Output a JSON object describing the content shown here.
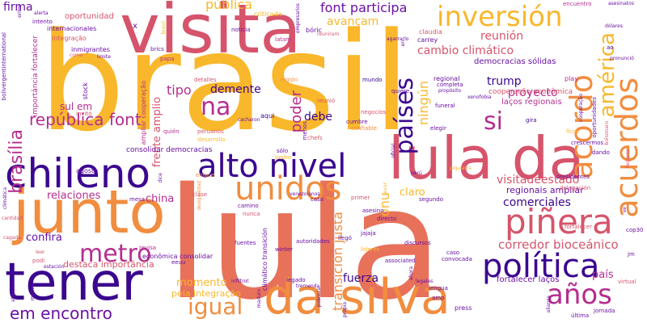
{
  "palette": {
    "gold": "#f9b72b",
    "coral": "#e8715a",
    "rose": "#d6546b",
    "magenta": "#b52d8f",
    "purple": "#6a11a4",
    "indigo": "#3b078f",
    "orange": "#f18d3f",
    "background": "#ffffff"
  },
  "words": [
    {
      "text": "lula",
      "color": "coral"
    },
    {
      "text": "brasil",
      "color": "gold"
    },
    {
      "text": "visita",
      "color": "rose"
    },
    {
      "text": "junto",
      "color": "orange"
    },
    {
      "text": "tener",
      "color": "indigo"
    },
    {
      "text": "chileno",
      "color": "indigo"
    },
    {
      "text": "lula da",
      "color": "rose"
    },
    {
      "text": "da silva",
      "color": "orange"
    },
    {
      "text": "alto nivel",
      "color": "indigo"
    },
    {
      "text": "inversión",
      "color": "gold"
    },
    {
      "text": "unidos",
      "color": "orange"
    },
    {
      "text": "piñera",
      "color": "rose"
    },
    {
      "text": "política",
      "color": "indigo"
    },
    {
      "text": "acordo",
      "color": "orange"
    },
    {
      "text": "acuerdos",
      "color": "orange"
    },
    {
      "text": "américa",
      "color": "gold"
    },
    {
      "text": "países",
      "color": "indigo"
    },
    {
      "text": "metro",
      "color": "magenta"
    },
    {
      "text": "na",
      "color": "magenta"
    },
    {
      "text": "si",
      "color": "magenta"
    },
    {
      "text": "igual",
      "color": "orange"
    },
    {
      "text": "años",
      "color": "magenta"
    },
    {
      "text": "em encontro",
      "color": "purple"
    },
    {
      "text": "república font",
      "color": "magenta"
    },
    {
      "text": "brasília",
      "color": "magenta"
    },
    {
      "text": "font participa",
      "color": "purple"
    },
    {
      "text": "pública",
      "color": "gold"
    },
    {
      "text": "cambio climático",
      "color": "rose"
    },
    {
      "text": "reunión",
      "color": "rose"
    },
    {
      "text": "avançam",
      "color": "gold"
    },
    {
      "text": "corredor bioceánico",
      "color": "rose"
    },
    {
      "text": "visitadeestado",
      "color": "rose"
    },
    {
      "text": "comerciales",
      "color": "indigo"
    },
    {
      "text": "regionais ampliar",
      "color": "purple"
    },
    {
      "text": "proyecto",
      "color": "magenta"
    },
    {
      "text": "trump",
      "color": "indigo"
    },
    {
      "text": "tipo",
      "color": "magenta"
    },
    {
      "text": "demente",
      "color": "indigo"
    },
    {
      "text": "debe",
      "color": "indigo"
    },
    {
      "text": "fuerza",
      "color": "indigo"
    },
    {
      "text": "transición justa",
      "color": "orange"
    },
    {
      "text": "momento",
      "color": "gold"
    },
    {
      "text": "relaciones",
      "color": "magenta"
    },
    {
      "text": "china",
      "color": "magenta"
    },
    {
      "text": "ningún",
      "color": "gold"
    },
    {
      "text": "claro",
      "color": "gold"
    },
    {
      "text": "onu",
      "color": "gold"
    },
    {
      "text": "confira",
      "color": "purple"
    },
    {
      "text": "poder",
      "color": "magenta"
    },
    {
      "text": "firma",
      "color": "purple"
    },
    {
      "text": "país",
      "color": "magenta"
    },
    {
      "text": "sul em",
      "color": "magenta"
    },
    {
      "text": "frente amplio",
      "color": "rose"
    },
    {
      "text": "pela integração",
      "color": "gold"
    },
    {
      "text": "destaca importância",
      "color": "rose"
    },
    {
      "text": "oportunidad",
      "color": "rose"
    },
    {
      "text": "democracias sólidas",
      "color": "purple"
    },
    {
      "text": "laços regionais",
      "color": "magenta"
    },
    {
      "text": "cooperação econômica",
      "color": "rose"
    },
    {
      "text": "fortalecer laços",
      "color": "purple"
    },
    {
      "text": "consolidar democracias",
      "color": "purple"
    },
    {
      "text": "ampliar cooperação",
      "color": "magenta"
    },
    {
      "text": "importância fortalecer",
      "color": "magenta"
    },
    {
      "text": "integração",
      "color": "rose"
    },
    {
      "text": "internacionales",
      "color": "purple"
    },
    {
      "text": "inmigrantes",
      "color": "purple"
    },
    {
      "text": "regional",
      "color": "purple"
    },
    {
      "text": "claudia",
      "color": "rose"
    },
    {
      "text": "carrey",
      "color": "purple"
    },
    {
      "text": "encuentro",
      "color": "magenta"
    },
    {
      "text": "noticia",
      "color": "purple"
    },
    {
      "text": "bóric",
      "color": "purple"
    },
    {
      "text": "latam",
      "color": "magenta"
    },
    {
      "text": "criticada",
      "color": "gold"
    },
    {
      "text": "reuniram",
      "color": "rose"
    },
    {
      "text": "papa",
      "color": "magenta"
    },
    {
      "text": "brics",
      "color": "purple"
    },
    {
      "text": "mundo",
      "color": "indigo"
    },
    {
      "text": "quiere",
      "color": "purple"
    },
    {
      "text": "completa",
      "color": "purple"
    },
    {
      "text": "play",
      "color": "magenta"
    },
    {
      "text": "ao",
      "color": "indigo"
    },
    {
      "text": "detalles",
      "color": "rose"
    },
    {
      "text": "región",
      "color": "orange"
    },
    {
      "text": "negocios",
      "color": "rose"
    },
    {
      "text": "reunió",
      "color": "rose"
    },
    {
      "text": "confiable",
      "color": "orange"
    },
    {
      "text": "cumbre",
      "color": "purple"
    },
    {
      "text": "menos",
      "color": "purple"
    },
    {
      "text": "elegir",
      "color": "purple"
    },
    {
      "text": "gira",
      "color": "indigo"
    },
    {
      "text": "aqui",
      "color": "indigo"
    },
    {
      "text": "chefs",
      "color": "rose"
    },
    {
      "text": "desarrollo",
      "color": "gold"
    },
    {
      "text": "sólo",
      "color": "purple"
    },
    {
      "text": "pedro",
      "color": "gold"
    },
    {
      "text": "stock",
      "color": "purple"
    },
    {
      "text": "invitó",
      "color": "rose"
    },
    {
      "text": "ano",
      "color": "orange"
    },
    {
      "text": "quién",
      "color": "magenta"
    },
    {
      "text": "peruanos",
      "color": "rose"
    },
    {
      "text": "agosto",
      "color": "purple"
    },
    {
      "text": "mesa",
      "color": "purple"
    },
    {
      "text": "clase",
      "color": "rose"
    },
    {
      "text": "camino",
      "color": "purple"
    },
    {
      "text": "nunca",
      "color": "rose"
    },
    {
      "text": "casa",
      "color": "purple"
    },
    {
      "text": "primer",
      "color": "rose"
    },
    {
      "text": "segundo",
      "color": "purple"
    },
    {
      "text": "presidentes",
      "color": "purple"
    },
    {
      "text": "delegación",
      "color": "rose"
    },
    {
      "text": "dando",
      "color": "purple"
    },
    {
      "text": "crescermos",
      "color": "purple"
    },
    {
      "text": "última",
      "color": "purple"
    },
    {
      "text": "revisa",
      "color": "magenta"
    },
    {
      "text": "econômica consolidar",
      "color": "purple"
    },
    {
      "text": "fuentes",
      "color": "purple"
    },
    {
      "text": "autoridades",
      "color": "purple"
    },
    {
      "text": "asesino",
      "color": "purple"
    },
    {
      "text": "directo",
      "color": "purple"
    },
    {
      "text": "discursos",
      "color": "purple"
    },
    {
      "text": "jajaja",
      "color": "purple"
    },
    {
      "text": "llegó",
      "color": "purple"
    },
    {
      "text": "lideres",
      "color": "gold"
    },
    {
      "text": "winter",
      "color": "purple"
    },
    {
      "text": "convocada",
      "color": "purple"
    },
    {
      "text": "caso",
      "color": "purple"
    },
    {
      "text": "legado",
      "color": "purple"
    },
    {
      "text": "lengua",
      "color": "purple"
    },
    {
      "text": "press",
      "color": "purple"
    },
    {
      "text": "jornada",
      "color": "purple"
    },
    {
      "text": "virtual",
      "color": "rose"
    },
    {
      "text": "podi",
      "color": "rose"
    },
    {
      "text": "leer",
      "color": "rose"
    },
    {
      "text": "estación",
      "color": "purple"
    },
    {
      "text": "eeuu",
      "color": "purple"
    },
    {
      "text": "climático transición",
      "color": "purple"
    },
    {
      "text": "alerta",
      "color": "purple"
    },
    {
      "text": "intento",
      "color": "purple"
    },
    {
      "text": "como",
      "color": "rose"
    },
    {
      "text": "pronunció",
      "color": "purple"
    },
    {
      "text": "oportunidades",
      "color": "purple"
    },
    {
      "text": "cooperação",
      "color": "purple"
    },
    {
      "text": "associated",
      "color": "purple"
    },
    {
      "text": "amp",
      "color": "purple"
    },
    {
      "text": "alianza",
      "color": "purple"
    },
    {
      "text": "fortalecer",
      "color": "rose"
    },
    {
      "text": "ficou",
      "color": "gold"
    },
    {
      "text": "cop30",
      "color": "purple"
    },
    {
      "text": "jm",
      "color": "purple"
    },
    {
      "text": "ve",
      "color": "purple"
    },
    {
      "text": "en",
      "color": "purple"
    },
    {
      "text": "asesinatos",
      "color": "purple"
    },
    {
      "text": "dólares",
      "color": "purple"
    },
    {
      "text": "límite",
      "color": "purple"
    },
    {
      "text": "cacharon",
      "color": "purple"
    },
    {
      "text": "redondo",
      "color": "gold"
    },
    {
      "text": "propósito",
      "color": "purple"
    },
    {
      "text": "xenofobia",
      "color": "purple"
    },
    {
      "text": "funeral",
      "color": "purple"
    },
    {
      "text": "piquiatra",
      "color": "gold"
    },
    {
      "text": "bolsonaro",
      "color": "rose"
    },
    {
      "text": "enlace",
      "color": "orange"
    },
    {
      "text": "cagada",
      "color": "rose"
    },
    {
      "text": "menos",
      "color": "purple"
    },
    {
      "text": "venezolanos",
      "color": "purple"
    },
    {
      "text": "oficial",
      "color": "purple"
    },
    {
      "text": "perú",
      "color": "purple"
    },
    {
      "text": "llegaron",
      "color": "rose"
    },
    {
      "text": "x",
      "color": "purple"
    },
    {
      "text": "llevar",
      "color": "gold"
    },
    {
      "text": "tremenda",
      "color": "purple"
    },
    {
      "text": "pobreza",
      "color": "purple"
    },
    {
      "text": "infiltrot",
      "color": "purple"
    },
    {
      "text": "maduro",
      "color": "purple"
    },
    {
      "text": "propia",
      "color": "purple"
    },
    {
      "text": "legales",
      "color": "purple"
    },
    {
      "text": "ahora",
      "color": "purple"
    },
    {
      "text": "empresarios",
      "color": "purple"
    },
    {
      "text": "agarrarlo",
      "color": "purple"
    },
    {
      "text": "brasil",
      "color": "gold"
    },
    {
      "text": "entre",
      "color": "purple"
    },
    {
      "text": "bolivergentinternational",
      "color": "purple"
    },
    {
      "text": "dice",
      "color": "purple"
    },
    {
      "text": "climática",
      "color": "purple"
    },
    {
      "text": "atención",
      "color": "purple"
    },
    {
      "text": "desigualdad",
      "color": "orange"
    },
    {
      "text": "cantidad",
      "color": "rose"
    }
  ]
}
